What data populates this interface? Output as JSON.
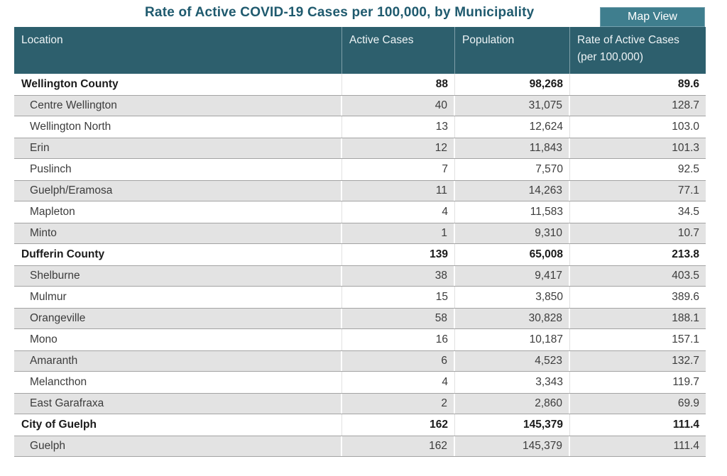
{
  "header": {
    "title": "Rate of Active COVID-19 Cases per 100,000, by Municipality",
    "map_view_label": "Map View"
  },
  "colors": {
    "title_text": "#1f5a6e",
    "table_header_bg": "#2d5f6d",
    "map_button_bg": "#3f7e8e",
    "stripe_row_bg": "#e3e3e3",
    "stripe_row_border": "#a3a3a3"
  },
  "chart_data": {
    "type": "table",
    "title": "Rate of Active COVID-19 Cases per 100,000, by Municipality",
    "columns": [
      "Location",
      "Active Cases",
      "Population",
      "Rate of Active Cases (per 100,000)"
    ],
    "rows": [
      {
        "location": "Wellington County",
        "active_cases": "88",
        "population": "98,268",
        "rate": "89.6",
        "level": "county"
      },
      {
        "location": "Centre Wellington",
        "active_cases": "40",
        "population": "31,075",
        "rate": "128.7",
        "level": "municipality"
      },
      {
        "location": "Wellington North",
        "active_cases": "13",
        "population": "12,624",
        "rate": "103.0",
        "level": "municipality"
      },
      {
        "location": "Erin",
        "active_cases": "12",
        "population": "11,843",
        "rate": "101.3",
        "level": "municipality"
      },
      {
        "location": "Puslinch",
        "active_cases": "7",
        "population": "7,570",
        "rate": "92.5",
        "level": "municipality"
      },
      {
        "location": "Guelph/Eramosa",
        "active_cases": "11",
        "population": "14,263",
        "rate": "77.1",
        "level": "municipality"
      },
      {
        "location": "Mapleton",
        "active_cases": "4",
        "population": "11,583",
        "rate": "34.5",
        "level": "municipality"
      },
      {
        "location": "Minto",
        "active_cases": "1",
        "population": "9,310",
        "rate": "10.7",
        "level": "municipality"
      },
      {
        "location": "Dufferin County",
        "active_cases": "139",
        "population": "65,008",
        "rate": "213.8",
        "level": "county"
      },
      {
        "location": "Shelburne",
        "active_cases": "38",
        "population": "9,417",
        "rate": "403.5",
        "level": "municipality"
      },
      {
        "location": "Mulmur",
        "active_cases": "15",
        "population": "3,850",
        "rate": "389.6",
        "level": "municipality"
      },
      {
        "location": "Orangeville",
        "active_cases": "58",
        "population": "30,828",
        "rate": "188.1",
        "level": "municipality"
      },
      {
        "location": "Mono",
        "active_cases": "16",
        "population": "10,187",
        "rate": "157.1",
        "level": "municipality"
      },
      {
        "location": "Amaranth",
        "active_cases": "6",
        "population": "4,523",
        "rate": "132.7",
        "level": "municipality"
      },
      {
        "location": "Melancthon",
        "active_cases": "4",
        "population": "3,343",
        "rate": "119.7",
        "level": "municipality"
      },
      {
        "location": "East Garafraxa",
        "active_cases": "2",
        "population": "2,860",
        "rate": "69.9",
        "level": "municipality"
      },
      {
        "location": "City of Guelph",
        "active_cases": "162",
        "population": "145,379",
        "rate": "111.4",
        "level": "county"
      },
      {
        "location": "Guelph",
        "active_cases": "162",
        "population": "145,379",
        "rate": "111.4",
        "level": "municipality"
      }
    ]
  }
}
